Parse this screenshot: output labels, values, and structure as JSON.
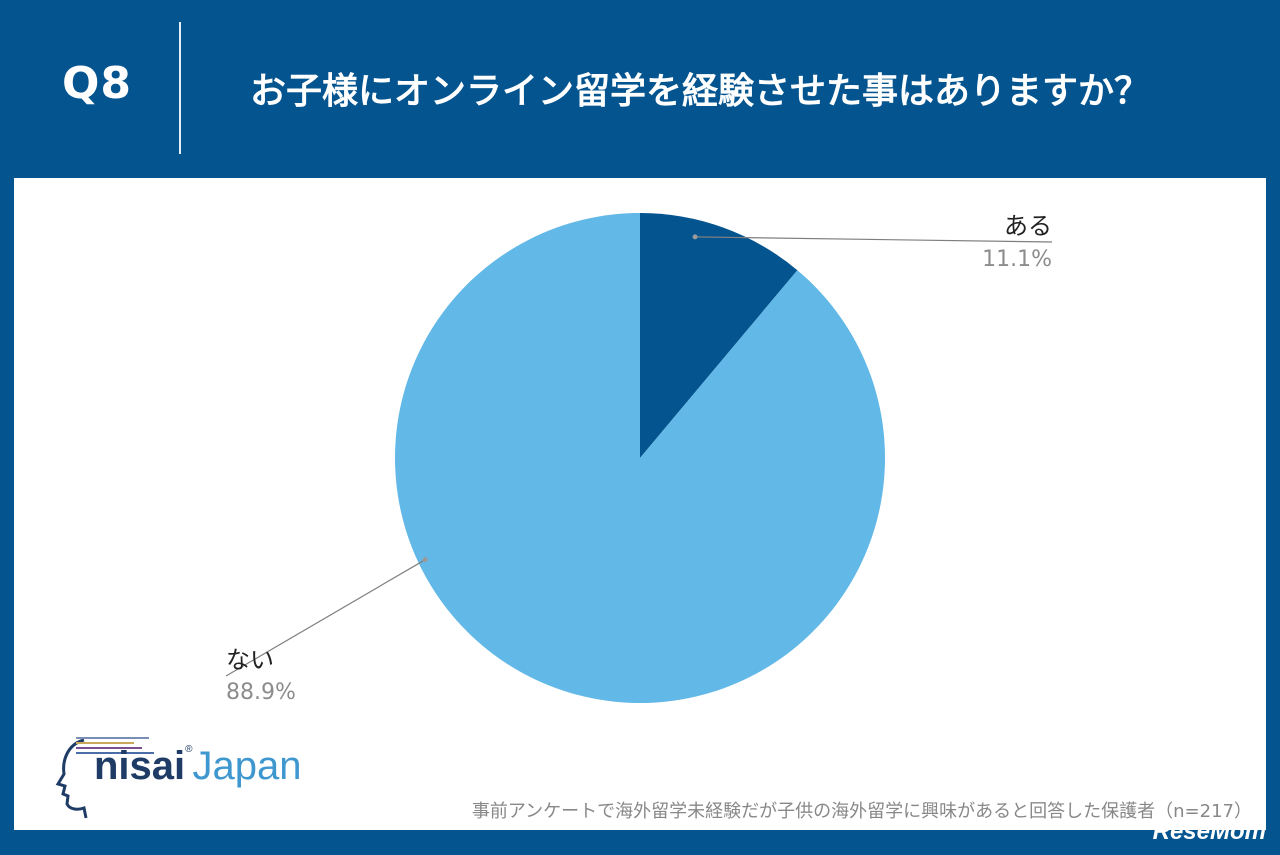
{
  "header": {
    "question_number": "Q8",
    "question_text": "お子様にオンライン留学を経験させた事はありますか？"
  },
  "footnote": "事前アンケートで海外留学未経験だが子供の海外留学に興味があると回答した保護者（n=217）",
  "logo": {
    "nisai": "nisai",
    "reg": "®",
    "japan": "Japan"
  },
  "watermark": "ReseMom",
  "colors": {
    "header_bg": "#03548f",
    "slice_aru": "#03548f",
    "slice_nai": "#62b8e7",
    "percent_text": "#8c8c8c"
  },
  "chart_data": {
    "type": "pie",
    "slices": [
      {
        "label": "ある",
        "value": 11.1,
        "value_label": "11.1%",
        "color": "#03548f"
      },
      {
        "label": "ない",
        "value": 88.9,
        "value_label": "88.9%",
        "color": "#62b8e7"
      }
    ],
    "start_angle": "12 o'clock",
    "direction": "clockwise"
  }
}
